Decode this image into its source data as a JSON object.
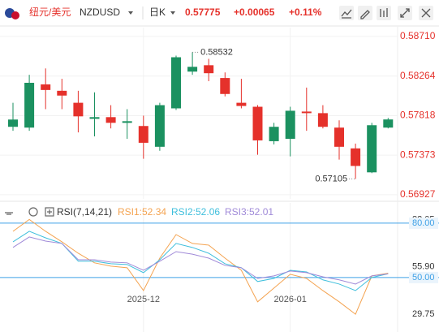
{
  "header": {
    "pair": "纽元/美元",
    "symbol": "NZDUSD",
    "period": "日K",
    "price": "0.57775",
    "change": "+0.00065",
    "change_pct": "+0.11%"
  },
  "chart_data": [
    {
      "type": "candlestick",
      "categories": [
        null,
        null,
        null,
        null,
        null,
        null,
        null,
        null,
        "2025-12",
        null,
        null,
        null,
        null,
        null,
        null,
        null,
        null,
        "2026-01",
        null,
        null,
        null,
        null,
        null,
        null
      ],
      "open": [
        0.57692,
        0.57683,
        0.5817,
        0.58098,
        0.57963,
        0.57782,
        0.57801,
        0.57737,
        0.57701,
        0.57467,
        0.579,
        0.58314,
        0.58386,
        0.58242,
        0.57963,
        0.57918,
        0.5753,
        0.57557,
        0.57864,
        0.57846,
        0.57683,
        0.57449,
        0.57179,
        0.57683
      ],
      "high": [
        0.57963,
        0.58278,
        0.5835,
        0.58233,
        0.58098,
        0.5808,
        0.57936,
        0.57891,
        0.57818,
        0.57963,
        0.58494,
        0.58532,
        0.58458,
        0.58305,
        0.58233,
        0.57936,
        0.57737,
        0.57918,
        0.58134,
        0.57936,
        0.57765,
        0.57503,
        0.57737,
        0.57792
      ],
      "low": [
        0.57647,
        0.57647,
        0.57891,
        0.57891,
        0.57629,
        0.57584,
        0.57674,
        0.57557,
        0.57332,
        0.57422,
        0.57882,
        0.58278,
        0.58206,
        0.58035,
        0.579,
        0.57377,
        0.57494,
        0.57359,
        0.57647,
        0.57674,
        0.57323,
        0.57105,
        0.5717,
        0.57674
      ],
      "close": [
        0.57774,
        0.58188,
        0.58107,
        0.58044,
        0.5781,
        0.57801,
        0.57737,
        0.57755,
        0.57512,
        0.57936,
        0.58476,
        0.58368,
        0.58296,
        0.58062,
        0.57927,
        0.57539,
        0.57692,
        0.57873,
        0.57846,
        0.57692,
        0.57467,
        0.57251,
        0.5771,
        0.57775
      ],
      "up_color": "#1b9160",
      "down_color": "#e5312b",
      "ylim": [
        0.5688,
        0.5881
      ],
      "yticks": [
        {
          "value": 0.56927,
          "label": "0.56927"
        },
        {
          "value": 0.57373,
          "label": "0.57373"
        },
        {
          "value": 0.57818,
          "label": "0.57818"
        },
        {
          "value": 0.58264,
          "label": "0.58264"
        },
        {
          "value": 0.5871,
          "label": "0.58710"
        }
      ],
      "grid": true
    },
    {
      "type": "line",
      "title": "RSI(7,14,21)",
      "categories": [
        null,
        null,
        null,
        null,
        null,
        null,
        null,
        null,
        "2025-12",
        null,
        null,
        null,
        null,
        null,
        null,
        null,
        null,
        "2026-01",
        null,
        null,
        null,
        null,
        null,
        null
      ],
      "series": [
        {
          "name": "RSI1:52.34",
          "color": "#f4a350",
          "values": [
            75.5,
            82.05,
            75.5,
            69.7,
            63.4,
            58.1,
            56.3,
            55.4,
            42.8,
            60.7,
            73.7,
            68.8,
            67.9,
            60.7,
            54.0,
            36.6,
            44.2,
            51.8,
            49.5,
            42.8,
            36.6,
            29.75,
            50.9,
            52.34
          ]
        },
        {
          "name": "RSI2:52.06",
          "color": "#3fbfdc",
          "values": [
            69.7,
            75.5,
            71.9,
            68.8,
            59.0,
            59.0,
            57.6,
            57.2,
            52.7,
            59.8,
            68.8,
            66.6,
            63.4,
            57.6,
            55.4,
            47.8,
            49.5,
            54.0,
            53.1,
            48.7,
            46.4,
            42.8,
            50.0,
            52.06
          ]
        },
        {
          "name": "RSI3:52.01",
          "color": "#a08ad8",
          "values": [
            66.6,
            72.4,
            70.1,
            68.8,
            59.8,
            59.8,
            58.5,
            58.1,
            54.0,
            59.0,
            64.3,
            62.9,
            60.7,
            56.7,
            55.4,
            49.5,
            50.9,
            53.6,
            52.7,
            50.4,
            48.7,
            46.4,
            50.9,
            52.01
          ]
        }
      ],
      "ylim": [
        28,
        84
      ],
      "yticks": [
        29.75,
        {
          "value": 55.9,
          "label": "55.90"
        },
        {
          "value": 82.05,
          "label": "82.05"
        }
      ],
      "reference_lines": [
        {
          "value": 80,
          "label": "80.00"
        },
        {
          "value": 50,
          "label": "50.00"
        }
      ],
      "reference_color": "#3ea0e6",
      "grid": true
    }
  ]
}
